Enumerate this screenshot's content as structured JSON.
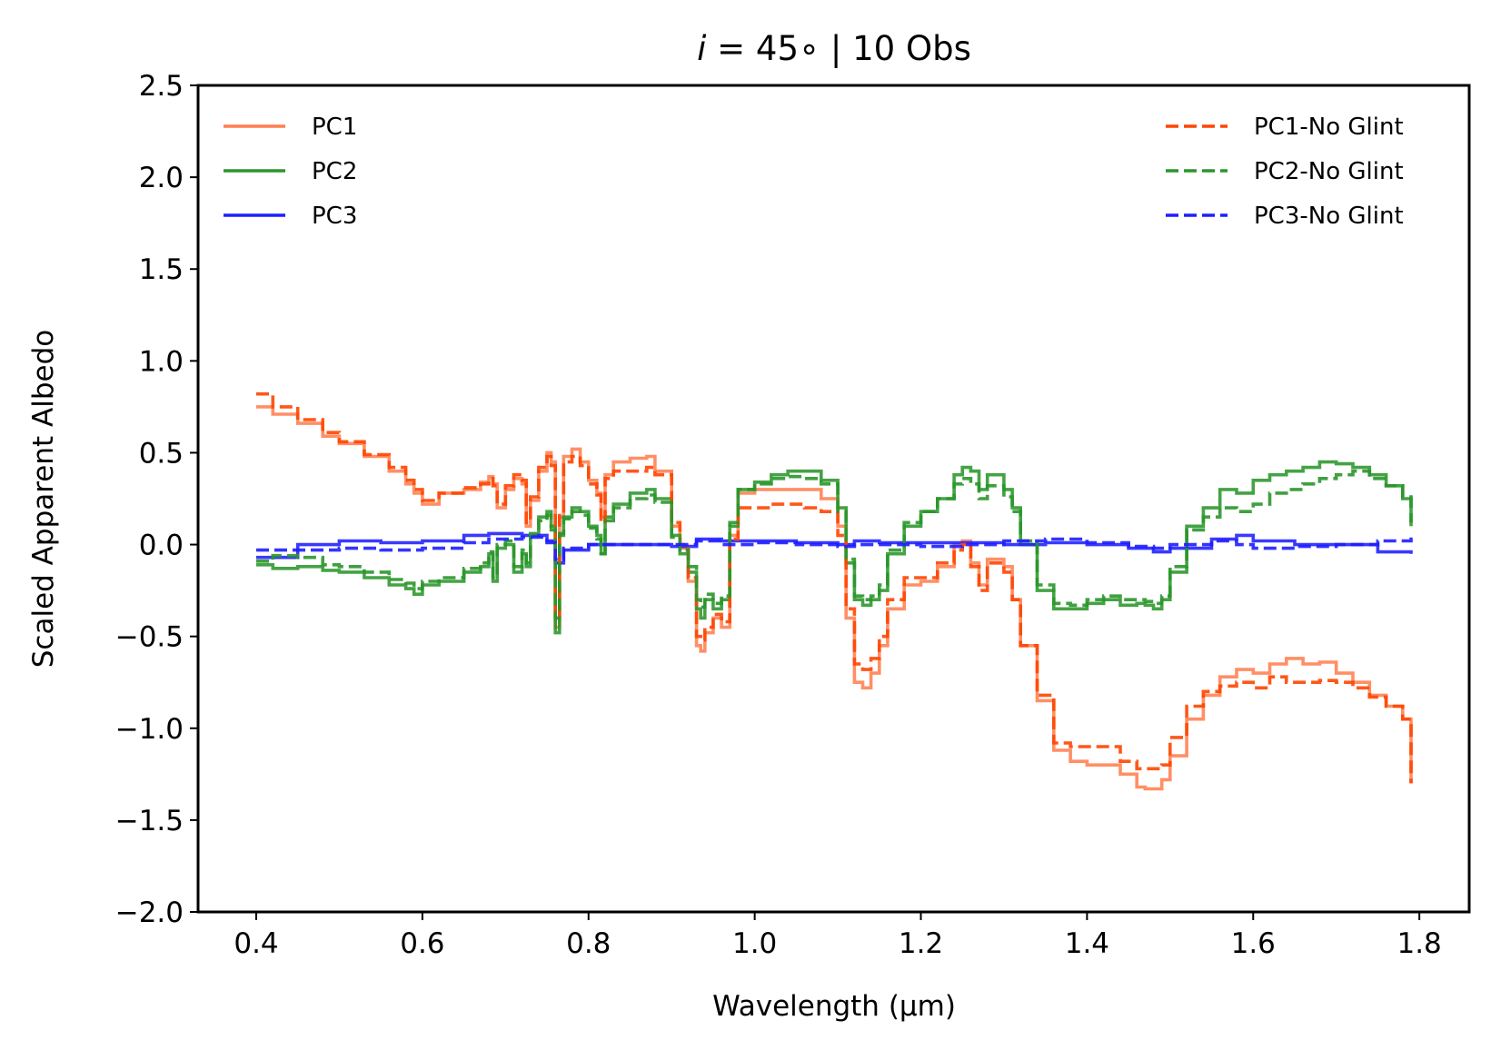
{
  "chart_data": {
    "type": "line",
    "title_math_var": "i",
    "title": " = 45∘ | 10 Obs",
    "xlabel": "Wavelength (μm)",
    "ylabel": "Scaled Apparent Albedo",
    "xlim": [
      0.33,
      1.86
    ],
    "ylim": [
      -2.0,
      2.5
    ],
    "xticks": [
      0.4,
      0.6,
      0.8,
      1.0,
      1.2,
      1.4,
      1.6,
      1.8
    ],
    "xtick_labels": [
      "0.4",
      "0.6",
      "0.8",
      "1.0",
      "1.2",
      "1.4",
      "1.6",
      "1.8"
    ],
    "yticks": [
      2.5,
      2.0,
      1.5,
      1.0,
      0.5,
      0.0,
      -0.5,
      -1.0,
      -1.5,
      -2.0
    ],
    "ytick_labels": [
      "2.5",
      "2.0",
      "1.5",
      "1.0",
      "0.5",
      "0.0",
      "−0.5",
      "−1.0",
      "−1.5",
      "−2.0"
    ],
    "grid": false,
    "legend_left_position": "top-left",
    "legend_right_position": "top-right",
    "series": [
      {
        "name": "PC1",
        "color": "#ff7f50",
        "dash": "solid",
        "legend": "left",
        "x": [
          0.4,
          0.42,
          0.45,
          0.48,
          0.5,
          0.53,
          0.56,
          0.58,
          0.59,
          0.6,
          0.62,
          0.65,
          0.67,
          0.68,
          0.685,
          0.69,
          0.7,
          0.71,
          0.72,
          0.725,
          0.73,
          0.74,
          0.75,
          0.755,
          0.76,
          0.765,
          0.77,
          0.78,
          0.79,
          0.8,
          0.81,
          0.815,
          0.82,
          0.83,
          0.85,
          0.87,
          0.88,
          0.9,
          0.91,
          0.92,
          0.93,
          0.935,
          0.94,
          0.95,
          0.96,
          0.97,
          0.98,
          1.0,
          1.02,
          1.04,
          1.06,
          1.08,
          1.1,
          1.11,
          1.12,
          1.13,
          1.14,
          1.15,
          1.16,
          1.18,
          1.2,
          1.22,
          1.24,
          1.25,
          1.26,
          1.27,
          1.28,
          1.3,
          1.31,
          1.32,
          1.34,
          1.36,
          1.38,
          1.4,
          1.42,
          1.44,
          1.46,
          1.47,
          1.48,
          1.49,
          1.5,
          1.52,
          1.54,
          1.56,
          1.58,
          1.6,
          1.62,
          1.64,
          1.66,
          1.68,
          1.7,
          1.72,
          1.74,
          1.76,
          1.78,
          1.79
        ],
        "y": [
          0.75,
          0.71,
          0.66,
          0.59,
          0.55,
          0.48,
          0.4,
          0.33,
          0.28,
          0.22,
          0.28,
          0.3,
          0.34,
          0.37,
          0.33,
          0.2,
          0.3,
          0.36,
          0.33,
          0.1,
          0.24,
          0.4,
          0.5,
          0.45,
          -0.45,
          0.15,
          0.48,
          0.52,
          0.45,
          0.35,
          0.28,
          0.15,
          0.38,
          0.45,
          0.47,
          0.48,
          0.4,
          0.1,
          -0.02,
          -0.2,
          -0.55,
          -0.58,
          -0.48,
          -0.4,
          -0.45,
          0.05,
          0.28,
          0.3,
          0.3,
          0.3,
          0.3,
          0.25,
          0.1,
          -0.4,
          -0.75,
          -0.78,
          -0.7,
          -0.55,
          -0.35,
          -0.22,
          -0.2,
          -0.12,
          0.0,
          0.02,
          -0.1,
          -0.22,
          -0.08,
          -0.12,
          -0.3,
          -0.55,
          -0.85,
          -1.12,
          -1.18,
          -1.2,
          -1.2,
          -1.25,
          -1.32,
          -1.33,
          -1.33,
          -1.28,
          -1.15,
          -0.95,
          -0.82,
          -0.72,
          -0.68,
          -0.7,
          -0.65,
          -0.62,
          -0.65,
          -0.64,
          -0.7,
          -0.75,
          -0.82,
          -0.88,
          -0.95,
          -1.3
        ]
      },
      {
        "name": "PC2",
        "color": "#2a962a",
        "dash": "solid",
        "legend": "left",
        "x": [
          0.4,
          0.42,
          0.45,
          0.48,
          0.5,
          0.53,
          0.56,
          0.58,
          0.59,
          0.6,
          0.62,
          0.65,
          0.67,
          0.68,
          0.685,
          0.69,
          0.7,
          0.71,
          0.72,
          0.725,
          0.73,
          0.74,
          0.75,
          0.755,
          0.76,
          0.765,
          0.77,
          0.78,
          0.79,
          0.8,
          0.81,
          0.815,
          0.82,
          0.83,
          0.85,
          0.87,
          0.88,
          0.9,
          0.91,
          0.92,
          0.93,
          0.935,
          0.94,
          0.95,
          0.96,
          0.97,
          0.98,
          1.0,
          1.02,
          1.04,
          1.06,
          1.08,
          1.1,
          1.11,
          1.12,
          1.13,
          1.14,
          1.15,
          1.16,
          1.18,
          1.2,
          1.22,
          1.24,
          1.25,
          1.26,
          1.27,
          1.28,
          1.3,
          1.31,
          1.32,
          1.34,
          1.36,
          1.38,
          1.4,
          1.42,
          1.44,
          1.46,
          1.47,
          1.48,
          1.49,
          1.5,
          1.52,
          1.54,
          1.56,
          1.58,
          1.6,
          1.62,
          1.64,
          1.66,
          1.68,
          1.7,
          1.72,
          1.74,
          1.76,
          1.78,
          1.79
        ],
        "y": [
          -0.11,
          -0.13,
          -0.12,
          -0.14,
          -0.15,
          -0.18,
          -0.22,
          -0.24,
          -0.27,
          -0.22,
          -0.2,
          -0.15,
          -0.12,
          -0.05,
          -0.2,
          -0.02,
          0.0,
          -0.15,
          -0.05,
          -0.12,
          0.05,
          0.15,
          0.18,
          0.1,
          -0.48,
          0.05,
          0.15,
          0.2,
          0.18,
          0.1,
          0.05,
          -0.05,
          0.15,
          0.22,
          0.28,
          0.3,
          0.25,
          0.05,
          -0.05,
          -0.15,
          -0.35,
          -0.4,
          -0.3,
          -0.35,
          -0.3,
          0.1,
          0.3,
          0.34,
          0.38,
          0.4,
          0.4,
          0.35,
          0.2,
          -0.1,
          -0.3,
          -0.33,
          -0.3,
          -0.25,
          -0.05,
          0.1,
          0.18,
          0.25,
          0.38,
          0.42,
          0.4,
          0.3,
          0.38,
          0.3,
          0.2,
          0.0,
          -0.25,
          -0.35,
          -0.35,
          -0.32,
          -0.3,
          -0.33,
          -0.32,
          -0.33,
          -0.35,
          -0.3,
          -0.15,
          0.1,
          0.2,
          0.3,
          0.28,
          0.35,
          0.38,
          0.4,
          0.42,
          0.45,
          0.44,
          0.42,
          0.38,
          0.32,
          0.25,
          0.1
        ]
      },
      {
        "name": "PC3",
        "color": "#1e1eff",
        "dash": "solid",
        "legend": "left",
        "x": [
          0.4,
          0.45,
          0.5,
          0.55,
          0.6,
          0.65,
          0.68,
          0.72,
          0.75,
          0.76,
          0.77,
          0.8,
          0.85,
          0.9,
          0.93,
          0.96,
          1.0,
          1.05,
          1.1,
          1.12,
          1.15,
          1.2,
          1.25,
          1.3,
          1.35,
          1.4,
          1.45,
          1.48,
          1.5,
          1.55,
          1.58,
          1.6,
          1.65,
          1.7,
          1.75,
          1.79
        ],
        "y": [
          -0.07,
          0.0,
          0.02,
          0.01,
          0.02,
          0.05,
          0.06,
          0.05,
          0.02,
          -0.1,
          -0.03,
          0.0,
          0.0,
          -0.01,
          0.03,
          0.02,
          0.02,
          0.01,
          0.0,
          0.02,
          0.01,
          0.01,
          0.01,
          0.0,
          0.01,
          0.0,
          -0.02,
          -0.04,
          -0.02,
          0.03,
          0.05,
          0.02,
          0.0,
          0.0,
          -0.04,
          -0.05
        ]
      },
      {
        "name": "PC1-No Glint",
        "color": "#ff4500",
        "dash": "dashed",
        "legend": "right",
        "x": [
          0.4,
          0.42,
          0.45,
          0.48,
          0.5,
          0.53,
          0.56,
          0.58,
          0.59,
          0.6,
          0.62,
          0.65,
          0.67,
          0.68,
          0.685,
          0.69,
          0.7,
          0.71,
          0.72,
          0.725,
          0.73,
          0.74,
          0.75,
          0.755,
          0.76,
          0.765,
          0.77,
          0.78,
          0.79,
          0.8,
          0.81,
          0.815,
          0.82,
          0.83,
          0.85,
          0.87,
          0.88,
          0.9,
          0.91,
          0.92,
          0.93,
          0.935,
          0.94,
          0.95,
          0.96,
          0.97,
          0.98,
          1.0,
          1.02,
          1.04,
          1.06,
          1.08,
          1.1,
          1.11,
          1.12,
          1.13,
          1.14,
          1.15,
          1.16,
          1.18,
          1.2,
          1.22,
          1.24,
          1.25,
          1.26,
          1.27,
          1.28,
          1.3,
          1.31,
          1.32,
          1.34,
          1.36,
          1.38,
          1.4,
          1.42,
          1.44,
          1.46,
          1.47,
          1.48,
          1.49,
          1.5,
          1.52,
          1.54,
          1.56,
          1.58,
          1.6,
          1.62,
          1.64,
          1.66,
          1.68,
          1.7,
          1.72,
          1.74,
          1.76,
          1.78,
          1.79
        ],
        "y": [
          0.82,
          0.75,
          0.68,
          0.61,
          0.56,
          0.49,
          0.42,
          0.35,
          0.3,
          0.24,
          0.28,
          0.31,
          0.33,
          0.36,
          0.32,
          0.22,
          0.32,
          0.38,
          0.35,
          0.12,
          0.26,
          0.42,
          0.48,
          0.43,
          -0.4,
          0.17,
          0.45,
          0.48,
          0.43,
          0.33,
          0.27,
          0.12,
          0.36,
          0.4,
          0.4,
          0.42,
          0.38,
          0.12,
          0.0,
          -0.18,
          -0.5,
          -0.52,
          -0.45,
          -0.38,
          -0.42,
          0.03,
          0.2,
          0.2,
          0.22,
          0.22,
          0.2,
          0.18,
          0.05,
          -0.35,
          -0.65,
          -0.68,
          -0.62,
          -0.5,
          -0.3,
          -0.18,
          -0.18,
          -0.1,
          -0.03,
          0.0,
          -0.12,
          -0.25,
          -0.1,
          -0.15,
          -0.3,
          -0.55,
          -0.82,
          -1.08,
          -1.1,
          -1.1,
          -1.1,
          -1.18,
          -1.22,
          -1.22,
          -1.22,
          -1.2,
          -1.05,
          -0.88,
          -0.8,
          -0.77,
          -0.75,
          -0.78,
          -0.72,
          -0.75,
          -0.75,
          -0.74,
          -0.75,
          -0.78,
          -0.83,
          -0.88,
          -0.95,
          -1.3
        ]
      },
      {
        "name": "PC2-No Glint",
        "color": "#2a962a",
        "dash": "dashed",
        "legend": "right",
        "x": [
          0.4,
          0.42,
          0.45,
          0.48,
          0.5,
          0.53,
          0.56,
          0.58,
          0.59,
          0.6,
          0.62,
          0.65,
          0.67,
          0.68,
          0.685,
          0.69,
          0.7,
          0.71,
          0.72,
          0.725,
          0.73,
          0.74,
          0.75,
          0.755,
          0.76,
          0.765,
          0.77,
          0.78,
          0.79,
          0.8,
          0.81,
          0.815,
          0.82,
          0.83,
          0.85,
          0.87,
          0.88,
          0.9,
          0.91,
          0.92,
          0.93,
          0.935,
          0.94,
          0.95,
          0.96,
          0.97,
          0.98,
          1.0,
          1.02,
          1.04,
          1.06,
          1.08,
          1.1,
          1.11,
          1.12,
          1.13,
          1.14,
          1.15,
          1.16,
          1.18,
          1.2,
          1.22,
          1.24,
          1.25,
          1.26,
          1.27,
          1.28,
          1.3,
          1.31,
          1.32,
          1.34,
          1.36,
          1.38,
          1.4,
          1.42,
          1.44,
          1.46,
          1.47,
          1.48,
          1.49,
          1.5,
          1.52,
          1.54,
          1.56,
          1.58,
          1.6,
          1.62,
          1.64,
          1.66,
          1.68,
          1.7,
          1.72,
          1.74,
          1.76,
          1.78,
          1.79
        ],
        "y": [
          -0.09,
          -0.06,
          -0.07,
          -0.11,
          -0.12,
          -0.15,
          -0.19,
          -0.21,
          -0.24,
          -0.2,
          -0.18,
          -0.13,
          -0.1,
          -0.04,
          -0.18,
          0.0,
          0.02,
          -0.12,
          -0.03,
          -0.1,
          0.06,
          0.13,
          0.16,
          0.08,
          -0.4,
          0.06,
          0.14,
          0.18,
          0.16,
          0.09,
          0.03,
          -0.05,
          0.13,
          0.2,
          0.25,
          0.27,
          0.23,
          0.04,
          -0.03,
          -0.12,
          -0.3,
          -0.34,
          -0.27,
          -0.32,
          -0.28,
          0.12,
          0.3,
          0.33,
          0.36,
          0.37,
          0.36,
          0.33,
          0.18,
          -0.08,
          -0.28,
          -0.3,
          -0.28,
          -0.22,
          -0.03,
          0.12,
          0.18,
          0.25,
          0.33,
          0.36,
          0.33,
          0.25,
          0.32,
          0.26,
          0.18,
          0.02,
          -0.22,
          -0.32,
          -0.33,
          -0.3,
          -0.28,
          -0.3,
          -0.3,
          -0.31,
          -0.32,
          -0.28,
          -0.12,
          0.08,
          0.15,
          0.2,
          0.18,
          0.22,
          0.28,
          0.3,
          0.33,
          0.36,
          0.38,
          0.4,
          0.36,
          0.32,
          0.26,
          0.12
        ]
      },
      {
        "name": "PC3-No Glint",
        "color": "#1e1eff",
        "dash": "dashed",
        "legend": "right",
        "x": [
          0.4,
          0.45,
          0.5,
          0.55,
          0.6,
          0.65,
          0.68,
          0.72,
          0.75,
          0.76,
          0.77,
          0.8,
          0.85,
          0.9,
          0.93,
          0.96,
          1.0,
          1.05,
          1.1,
          1.12,
          1.15,
          1.2,
          1.25,
          1.3,
          1.35,
          1.4,
          1.45,
          1.48,
          1.5,
          1.55,
          1.58,
          1.6,
          1.65,
          1.7,
          1.75,
          1.79
        ],
        "y": [
          -0.03,
          -0.03,
          -0.02,
          -0.03,
          -0.02,
          0.01,
          0.03,
          0.04,
          0.01,
          -0.08,
          -0.02,
          0.0,
          0.0,
          0.0,
          0.02,
          0.0,
          0.01,
          0.0,
          -0.01,
          0.0,
          0.0,
          -0.01,
          0.0,
          0.02,
          0.03,
          0.01,
          -0.01,
          -0.02,
          0.0,
          0.02,
          0.0,
          -0.02,
          -0.01,
          0.0,
          0.02,
          0.04
        ]
      }
    ]
  }
}
